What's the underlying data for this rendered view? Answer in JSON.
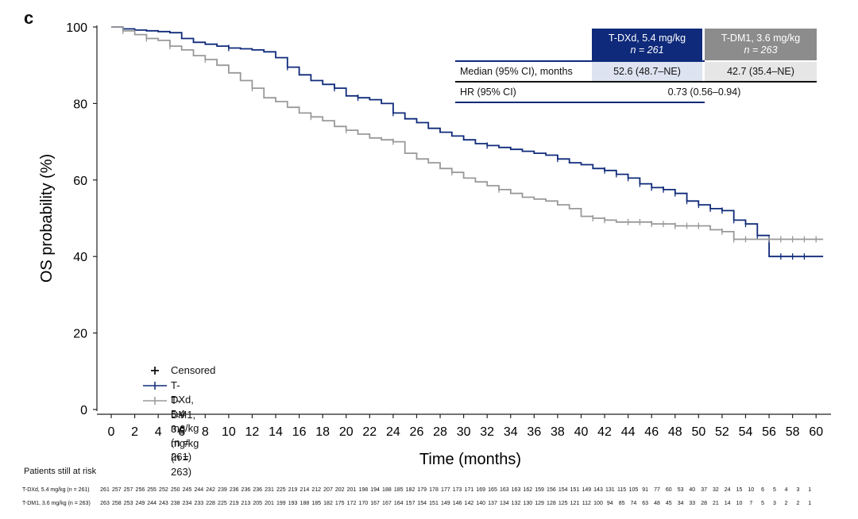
{
  "panel_label": "c",
  "chart_data": {
    "type": "line",
    "ylabel": "OS probability (%)",
    "xlabel": "Time (months)",
    "xlim": [
      0,
      61
    ],
    "ylim": [
      0,
      100
    ],
    "xticks": [
      0,
      2,
      4,
      6,
      8,
      10,
      12,
      14,
      16,
      18,
      20,
      22,
      24,
      26,
      28,
      30,
      32,
      34,
      36,
      38,
      40,
      42,
      44,
      46,
      48,
      50,
      52,
      54,
      56,
      58,
      60
    ],
    "yticks": [
      0,
      20,
      40,
      60,
      80,
      100
    ],
    "series": [
      {
        "name": "T-DXd, 5.4 mg/kg (n = 261)",
        "color": "#0f2a7a",
        "x": [
          0,
          1,
          2,
          3,
          4,
          5,
          6,
          7,
          8,
          9,
          10,
          11,
          12,
          13,
          14,
          15,
          16,
          17,
          18,
          19,
          20,
          21,
          22,
          23,
          24,
          25,
          26,
          27,
          28,
          29,
          30,
          31,
          32,
          33,
          34,
          35,
          36,
          37,
          38,
          39,
          40,
          41,
          42,
          43,
          44,
          45,
          46,
          47,
          48,
          49,
          50,
          51,
          52,
          53,
          54,
          55,
          55.6,
          56,
          58,
          60,
          60.6
        ],
        "y": [
          100,
          99.5,
          99.2,
          99,
          98.8,
          98.5,
          97,
          96,
          95.5,
          95,
          94.5,
          94.3,
          94,
          93.5,
          92,
          89.5,
          87.5,
          86,
          85,
          84,
          82,
          81.5,
          81,
          80,
          77.5,
          76,
          75,
          73.5,
          72.5,
          71.5,
          70.5,
          69.5,
          69,
          68.5,
          68,
          67.5,
          67,
          66.5,
          65.5,
          64.5,
          64,
          63,
          62.5,
          61.5,
          60.5,
          59,
          58,
          57.5,
          56.5,
          54.5,
          53.5,
          52.5,
          52,
          49.5,
          48.5,
          45.5,
          45.5,
          40,
          40,
          40,
          40
        ],
        "censored_x": [
          10,
          15,
          19,
          21,
          24,
          32,
          38,
          42,
          43,
          44,
          45,
          46,
          47,
          48,
          49,
          50,
          51,
          52,
          53,
          54,
          55,
          57,
          58,
          59
        ]
      },
      {
        "name": "T-DM1, 3.6 mg/kg (n = 263)",
        "color": "#999999",
        "x": [
          0,
          1,
          2,
          3,
          4,
          5,
          6,
          7,
          8,
          9,
          10,
          11,
          12,
          13,
          14,
          15,
          16,
          17,
          18,
          19,
          20,
          21,
          22,
          23,
          24,
          25,
          26,
          27,
          28,
          29,
          30,
          31,
          32,
          33,
          34,
          35,
          36,
          37,
          38,
          39,
          40,
          41,
          42,
          43,
          44,
          45,
          46,
          47,
          48,
          49,
          50,
          51,
          52,
          53,
          54,
          55,
          56,
          57,
          58,
          59,
          60,
          60.6
        ],
        "y": [
          100,
          99,
          98,
          97,
          96.5,
          95,
          94,
          92.5,
          91.5,
          90,
          88,
          86,
          84,
          81.5,
          80.5,
          79,
          77.5,
          76.5,
          75.5,
          74,
          73,
          72,
          71,
          70.5,
          70,
          67,
          65.5,
          64.5,
          63,
          62,
          60.5,
          59.5,
          58.5,
          57.5,
          56.5,
          55.5,
          55,
          54.5,
          53.5,
          52.5,
          50.5,
          50,
          49.5,
          49,
          49,
          49,
          48.5,
          48.5,
          48,
          48,
          48,
          47,
          46.5,
          44.5,
          44.5,
          44.5,
          44.5,
          44.5,
          44.5,
          44.5,
          44.5,
          44.5
        ],
        "censored_x": [
          1,
          3,
          5,
          8,
          12,
          17,
          20,
          24,
          29,
          33,
          41,
          42,
          44,
          45,
          46,
          47,
          48,
          49,
          50,
          52,
          53,
          54,
          56,
          57,
          58,
          59,
          60
        ]
      }
    ],
    "table": {
      "col1_header_line1": "T-DXd, 5.4 mg/kg",
      "col1_header_line2": "n = 261",
      "col2_header_line1": "T-DM1, 3.6 mg/kg",
      "col2_header_line2": "n = 263",
      "row1_label": "Median (95% CI), months",
      "row1_col1": "52.6 (48.7–NE)",
      "row1_col2": "42.7 (35.4–NE)",
      "row2_label": "HR (95% CI)",
      "row2_value": "0.73 (0.56–0.94)"
    },
    "legend": {
      "censored": "Censored",
      "series1": "T-DXd, 5.4 mg/kg (n = 261)",
      "series2": "T-DM1, 3.6 mg/kg (n = 263)",
      "placement": "bottom-left"
    },
    "risk_table": {
      "title": "Patients still at risk",
      "rows": [
        {
          "label": "T-DXd, 5.4 mg/kg (n = 261)",
          "values": [
            261,
            257,
            257,
            256,
            255,
            252,
            250,
            245,
            244,
            242,
            239,
            236,
            236,
            236,
            231,
            225,
            219,
            214,
            212,
            207,
            202,
            201,
            198,
            194,
            188,
            185,
            182,
            179,
            178,
            177,
            173,
            171,
            169,
            165,
            163,
            163,
            162,
            159,
            156,
            154,
            151,
            149,
            143,
            131,
            115,
            105,
            91,
            77,
            60,
            53,
            40,
            37,
            32,
            24,
            15,
            10,
            6,
            5,
            4,
            3,
            1
          ]
        },
        {
          "label": "T-DM1, 3.6 mg/kg (n = 263)",
          "values": [
            263,
            258,
            253,
            249,
            244,
            243,
            238,
            234,
            233,
            228,
            225,
            219,
            213,
            205,
            201,
            199,
            193,
            188,
            185,
            182,
            175,
            172,
            170,
            167,
            167,
            164,
            157,
            154,
            151,
            149,
            146,
            142,
            140,
            137,
            134,
            132,
            130,
            129,
            128,
            125,
            121,
            112,
            100,
            94,
            85,
            74,
            63,
            48,
            45,
            34,
            33,
            28,
            21,
            14,
            10,
            7,
            5,
            3,
            2,
            2,
            1
          ]
        }
      ]
    }
  }
}
